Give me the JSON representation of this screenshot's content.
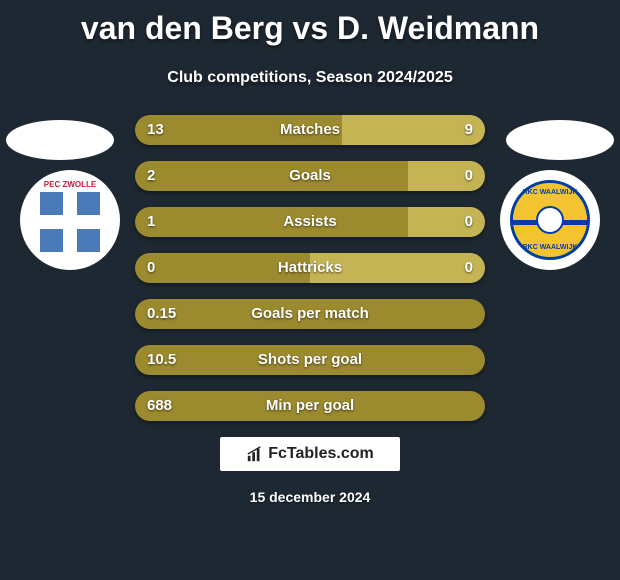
{
  "title": "van den Berg vs D. Weidmann",
  "subtitle": "Club competitions, Season 2024/2025",
  "player1_club": {
    "name": "PEC Zwolle",
    "label": "PEC ZWOLLE",
    "colors": {
      "shield": "#4a7ab8",
      "text": "#c41e3a",
      "cross": "#ffffff"
    }
  },
  "player2_club": {
    "name": "RKC Waalwijk",
    "label_top": "RKC WAALWIJK",
    "label_bot": "RKC WAALWIJK",
    "colors": {
      "outer": "#f4c430",
      "ring": "#003da5"
    }
  },
  "colors": {
    "player1_bar": "#9b8a2e",
    "player2_bar": "#c4b454",
    "background": "#1e2832",
    "text": "#ffffff"
  },
  "stats": [
    {
      "label": "Matches",
      "p1": "13",
      "p2": "9",
      "p1_share": 0.59
    },
    {
      "label": "Goals",
      "p1": "2",
      "p2": "0",
      "p1_share": 0.78
    },
    {
      "label": "Assists",
      "p1": "1",
      "p2": "0",
      "p1_share": 0.78
    },
    {
      "label": "Hattricks",
      "p1": "0",
      "p2": "0",
      "p1_share": 0.5
    },
    {
      "label": "Goals per match",
      "p1": "0.15",
      "p2": "",
      "p1_share": 1.0
    },
    {
      "label": "Shots per goal",
      "p1": "10.5",
      "p2": "",
      "p1_share": 1.0
    },
    {
      "label": "Min per goal",
      "p1": "688",
      "p2": "",
      "p1_share": 1.0
    }
  ],
  "footer": {
    "site": "FcTables.com",
    "date": "15 december 2024"
  }
}
